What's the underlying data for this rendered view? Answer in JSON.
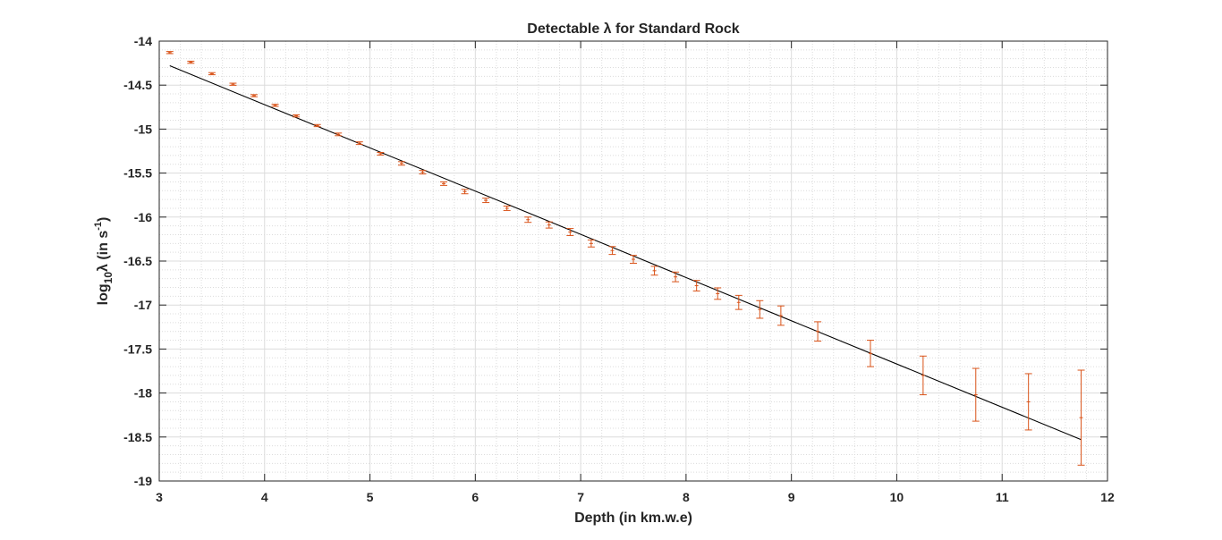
{
  "chart_data": {
    "type": "scatter",
    "title": "Detectable λ for Standard Rock",
    "xlabel": "Depth (in km.w.e)",
    "ylabel": {
      "prefix": "log",
      "subscript": "10",
      "middle": "λ (in s",
      "superscript": "-1",
      "suffix": ")"
    },
    "xlim": [
      3,
      12
    ],
    "ylim": [
      -19,
      -14
    ],
    "xticks": [
      "3",
      "4",
      "5",
      "6",
      "7",
      "8",
      "9",
      "10",
      "11",
      "12"
    ],
    "yticks": [
      "-14",
      "-14.5",
      "-15",
      "-15.5",
      "-16",
      "-16.5",
      "-17",
      "-17.5",
      "-18",
      "-18.5",
      "-19"
    ],
    "grid": true,
    "minor_grid": true,
    "colors": {
      "errorbar": "#d95319",
      "fit": "#000000",
      "grid": "#dcdcdc",
      "axes": "#262626"
    },
    "series": [
      {
        "type": "errorbar",
        "points": [
          {
            "x": 3.1,
            "y": -14.13,
            "err": 0.012
          },
          {
            "x": 3.3,
            "y": -14.24,
            "err": 0.012
          },
          {
            "x": 3.5,
            "y": -14.37,
            "err": 0.012
          },
          {
            "x": 3.7,
            "y": -14.49,
            "err": 0.012
          },
          {
            "x": 3.9,
            "y": -14.62,
            "err": 0.012
          },
          {
            "x": 4.1,
            "y": -14.73,
            "err": 0.012
          },
          {
            "x": 4.3,
            "y": -14.85,
            "err": 0.012
          },
          {
            "x": 4.5,
            "y": -14.96,
            "err": 0.012
          },
          {
            "x": 4.7,
            "y": -15.06,
            "err": 0.015
          },
          {
            "x": 4.9,
            "y": -15.16,
            "err": 0.015
          },
          {
            "x": 5.1,
            "y": -15.28,
            "err": 0.015
          },
          {
            "x": 5.3,
            "y": -15.39,
            "err": 0.02
          },
          {
            "x": 5.5,
            "y": -15.49,
            "err": 0.02
          },
          {
            "x": 5.7,
            "y": -15.62,
            "err": 0.02
          },
          {
            "x": 5.9,
            "y": -15.71,
            "err": 0.025
          },
          {
            "x": 6.1,
            "y": -15.81,
            "err": 0.025
          },
          {
            "x": 6.3,
            "y": -15.9,
            "err": 0.025
          },
          {
            "x": 6.5,
            "y": -16.03,
            "err": 0.03
          },
          {
            "x": 6.7,
            "y": -16.09,
            "err": 0.035
          },
          {
            "x": 6.9,
            "y": -16.17,
            "err": 0.04
          },
          {
            "x": 7.1,
            "y": -16.3,
            "err": 0.04
          },
          {
            "x": 7.3,
            "y": -16.38,
            "err": 0.045
          },
          {
            "x": 7.5,
            "y": -16.48,
            "err": 0.045
          },
          {
            "x": 7.7,
            "y": -16.61,
            "err": 0.05
          },
          {
            "x": 7.9,
            "y": -16.68,
            "err": 0.055
          },
          {
            "x": 8.1,
            "y": -16.78,
            "err": 0.06
          },
          {
            "x": 8.3,
            "y": -16.87,
            "err": 0.065
          },
          {
            "x": 8.5,
            "y": -16.97,
            "err": 0.08
          },
          {
            "x": 8.7,
            "y": -17.05,
            "err": 0.1
          },
          {
            "x": 8.9,
            "y": -17.12,
            "err": 0.11
          },
          {
            "x": 9.25,
            "y": -17.3,
            "err": 0.11
          },
          {
            "x": 9.75,
            "y": -17.55,
            "err": 0.15
          },
          {
            "x": 10.25,
            "y": -17.8,
            "err": 0.22
          },
          {
            "x": 10.75,
            "y": -18.02,
            "err": 0.3
          },
          {
            "x": 11.25,
            "y": -18.1,
            "err": 0.32
          },
          {
            "x": 11.75,
            "y": -18.28,
            "err": 0.54
          }
        ]
      },
      {
        "type": "line",
        "x": [
          3.1,
          11.75
        ],
        "y": [
          -14.28,
          -18.53
        ]
      }
    ]
  }
}
